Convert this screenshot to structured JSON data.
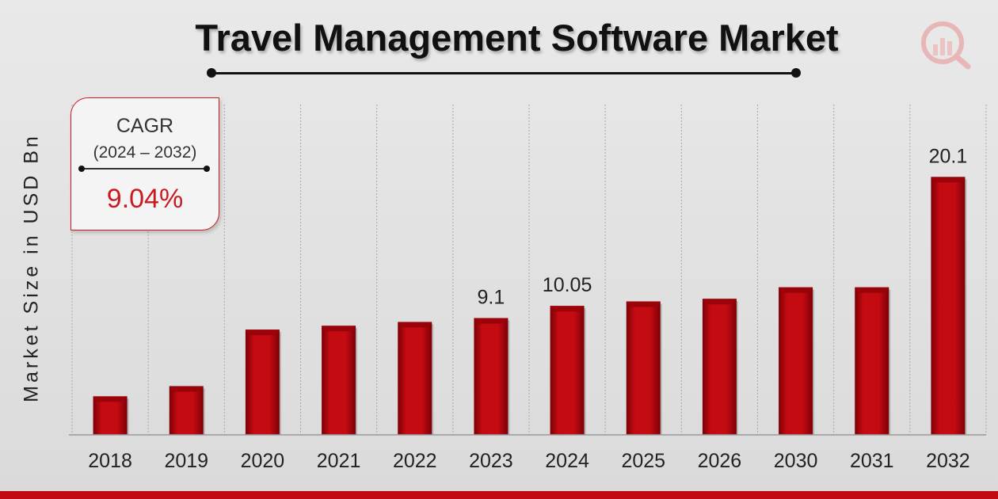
{
  "title": "Travel Management Software Market",
  "cagr": {
    "label": "CAGR",
    "range": "(2024 – 2032)",
    "value": "9.04%"
  },
  "colors": {
    "bar": "#c40b12",
    "bar_dark": "#7d0006",
    "accent": "#c81a1f",
    "bottom_bar": "#c00a0f"
  },
  "logo_icon": "magnifier-bar-chart-icon",
  "chart_data": {
    "type": "bar",
    "title": "Travel Management Software Market",
    "ylabel": "Market Size in USD Bn",
    "xlabel": "",
    "categories": [
      "2018",
      "2019",
      "2020",
      "2021",
      "2022",
      "2023",
      "2024",
      "2025",
      "2026",
      "2030",
      "2031",
      "2032"
    ],
    "values": [
      3.0,
      3.8,
      8.2,
      8.5,
      8.8,
      9.1,
      10.05,
      10.4,
      10.6,
      11.5,
      11.5,
      20.1
    ],
    "data_labels": [
      {
        "index": 5,
        "text": "9.1"
      },
      {
        "index": 6,
        "text": "10.05"
      },
      {
        "index": 11,
        "text": "20.1"
      }
    ],
    "grid": "vertical dashed",
    "legend": "none"
  }
}
